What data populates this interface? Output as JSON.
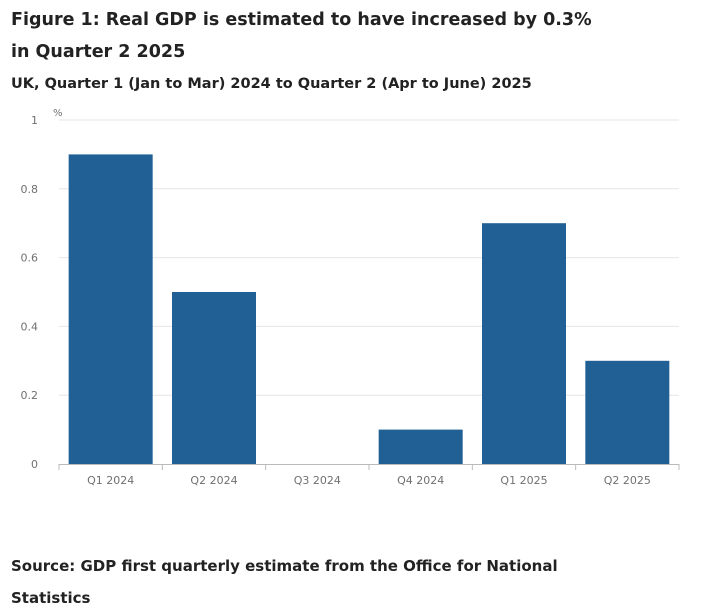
{
  "figure": {
    "title": "Figure 1: Real GDP is estimated to have increased by 0.3% in Quarter 2 2025",
    "subtitle": "UK, Quarter 1 (Jan to Mar) 2024 to Quarter 2 (Apr to June) 2025",
    "source": "Source: GDP first quarterly estimate from the Office for National Statistics"
  },
  "chart_data": {
    "type": "bar",
    "categories": [
      "Q1 2024",
      "Q2 2024",
      "Q3 2024",
      "Q4 2024",
      "Q1 2025",
      "Q2 2025"
    ],
    "values": [
      0.9,
      0.5,
      0.0,
      0.1,
      0.7,
      0.3
    ],
    "unit_label": "%",
    "ylim": [
      0,
      1
    ],
    "yticks": [
      "0",
      "0.2",
      "0.4",
      "0.6",
      "0.8",
      "1"
    ],
    "ytick_values": [
      0,
      0.2,
      0.4,
      0.6,
      0.8,
      1
    ],
    "grid": true,
    "bar_color": "#206095",
    "grid_color": "#e6e6e6",
    "axis_color": "#bbbbbb",
    "tick_text_color": "#707070"
  }
}
